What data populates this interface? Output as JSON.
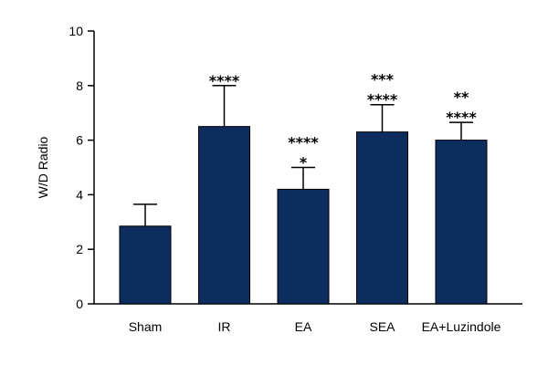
{
  "chart_data": {
    "type": "bar",
    "ylabel": "W/D Radio",
    "xlabel": "",
    "ylim": [
      0,
      10
    ],
    "yticks": [
      0,
      2,
      4,
      6,
      8,
      10
    ],
    "categories": [
      "Sham",
      "IR",
      "EA",
      "SEA",
      "EA+Luzindole"
    ],
    "values": [
      2.85,
      6.5,
      4.2,
      6.3,
      6.0
    ],
    "errors": [
      0.8,
      1.5,
      0.8,
      1.0,
      0.65
    ],
    "significance": [
      [],
      [
        "****"
      ],
      [
        "****",
        "*"
      ],
      [
        "***",
        "****"
      ],
      [
        "**",
        "****"
      ]
    ],
    "grid": false,
    "bar_color": "#0d2d5e"
  }
}
